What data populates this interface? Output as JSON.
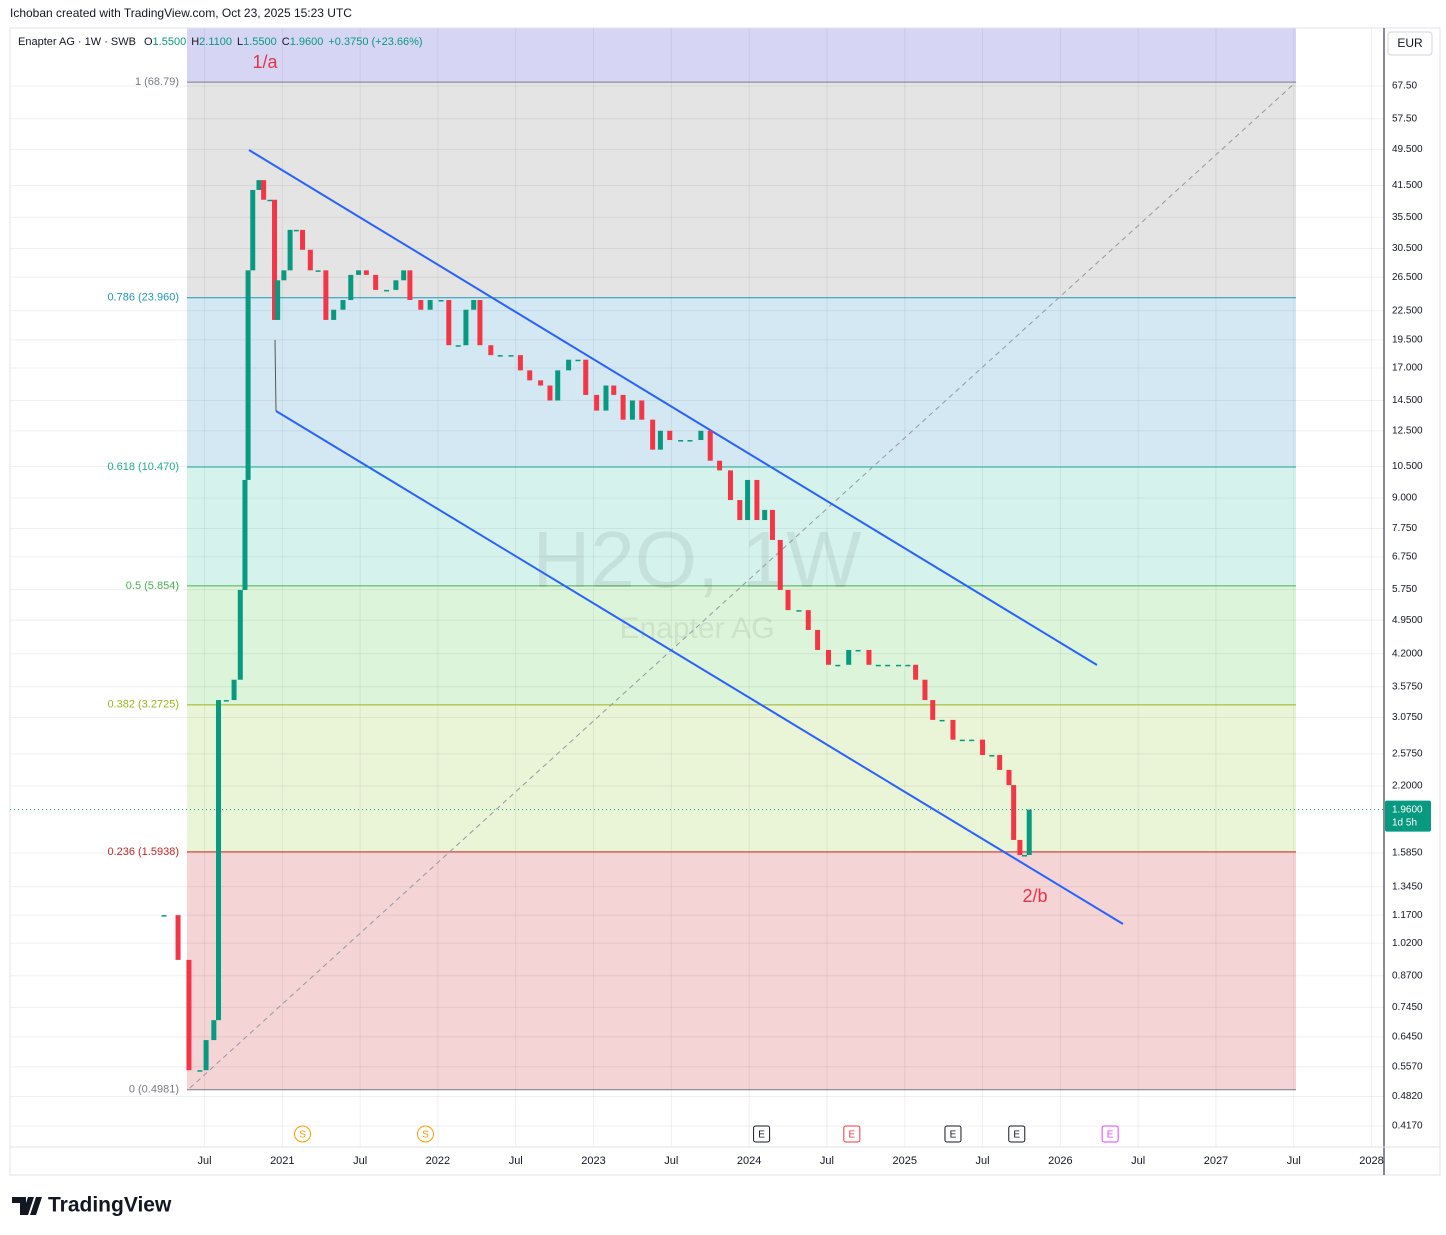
{
  "header": {
    "attribution": "Ichoban created with TradingView.com, Oct 23, 2025 15:23 UTC",
    "symbol": "Enapter AG · 1W · SWB",
    "ohlc": [
      {
        "key": "O",
        "value": "1.5500"
      },
      {
        "key": "H",
        "value": "2.1100"
      },
      {
        "key": "L",
        "value": "1.5500"
      },
      {
        "key": "C",
        "value": "1.9600"
      }
    ],
    "change": "+0.3750 (+23.66%)"
  },
  "currency": "EUR",
  "watermark": {
    "title": "H2O, 1W",
    "subtitle": "Enapter AG"
  },
  "chart_data": {
    "type": "candlestick",
    "log_scale": true,
    "grid": true,
    "color_up": "#089981",
    "color_down": "#f23645",
    "x": [
      2020.24,
      2020.33,
      2020.4,
      2020.47,
      2020.51,
      2020.56,
      2020.59,
      2020.64,
      2020.69,
      2020.73,
      2020.76,
      2020.78,
      2020.81,
      2020.85,
      2020.88,
      2020.92,
      2020.95,
      2020.97,
      2021.01,
      2021.05,
      2021.09,
      2021.13,
      2021.18,
      2021.23,
      2021.28,
      2021.33,
      2021.39,
      2021.44,
      2021.49,
      2021.54,
      2021.6,
      2021.67,
      2021.73,
      2021.78,
      2021.82,
      2021.89,
      2021.95,
      2022.02,
      2022.07,
      2022.13,
      2022.18,
      2022.23,
      2022.27,
      2022.34,
      2022.4,
      2022.47,
      2022.53,
      2022.59,
      2022.66,
      2022.72,
      2022.77,
      2022.84,
      2022.9,
      2022.95,
      2023.02,
      2023.08,
      2023.13,
      2023.19,
      2023.25,
      2023.31,
      2023.38,
      2023.43,
      2023.49,
      2023.56,
      2023.62,
      2023.69,
      2023.75,
      2023.81,
      2023.88,
      2023.94,
      2023.99,
      2024.05,
      2024.1,
      2024.15,
      2024.2,
      2024.25,
      2024.32,
      2024.38,
      2024.44,
      2024.51,
      2024.57,
      2024.64,
      2024.7,
      2024.77,
      2024.83,
      2024.89,
      2024.96,
      2025.02,
      2025.07,
      2025.13,
      2025.18,
      2025.24,
      2025.31,
      2025.37,
      2025.43,
      2025.5,
      2025.56,
      2025.61,
      2025.67,
      2025.7,
      2025.74,
      2025.77,
      2025.8
    ],
    "values": [
      1.17,
      0.94,
      0.548,
      0.548,
      0.635,
      0.7,
      3.35,
      3.35,
      3.7,
      5.74,
      9.83,
      27.4,
      40.6,
      42.6,
      38.7,
      38.7,
      21.5,
      26.1,
      27.4,
      33.4,
      33.4,
      30.3,
      27.4,
      27.4,
      21.5,
      22.6,
      23.7,
      26.8,
      27.4,
      26.8,
      24.9,
      24.9,
      26.1,
      27.4,
      23.7,
      22.6,
      23.7,
      23.7,
      19.0,
      19.0,
      22.6,
      23.7,
      19.0,
      18.1,
      18.1,
      18.1,
      16.8,
      16.0,
      15.6,
      14.5,
      16.8,
      17.7,
      17.7,
      14.9,
      13.8,
      15.6,
      14.9,
      13.2,
      14.5,
      13.2,
      11.4,
      12.5,
      11.95,
      11.95,
      11.95,
      12.5,
      10.8,
      10.3,
      8.91,
      8.08,
      9.83,
      8.08,
      8.49,
      7.33,
      5.74,
      5.2,
      5.2,
      4.72,
      4.28,
      3.98,
      3.98,
      4.28,
      4.28,
      3.98,
      3.98,
      3.98,
      3.98,
      3.98,
      3.7,
      3.35,
      3.04,
      3.04,
      2.76,
      2.76,
      2.76,
      2.56,
      2.56,
      2.38,
      2.21,
      1.69,
      1.57,
      1.57,
      1.96
    ],
    "xlim": [
      2019.25,
      2028.08
    ],
    "ylim": [
      0.3764,
      89.65
    ],
    "xticks": [
      {
        "value": 2020.5,
        "label": "Jul"
      },
      2021,
      {
        "value": 2021.5,
        "label": "Jul"
      },
      2022,
      {
        "value": 2022.5,
        "label": "Jul"
      },
      2023,
      {
        "value": 2023.5,
        "label": "Jul"
      },
      2024,
      {
        "value": 2024.5,
        "label": "Jul"
      },
      2025,
      {
        "value": 2025.5,
        "label": "Jul"
      },
      2026,
      {
        "value": 2026.5,
        "label": "Jul"
      },
      2027,
      {
        "value": 2027.5,
        "label": "Jul"
      },
      2028
    ],
    "yticks": [
      {
        "value": 67.5,
        "label": "67.50"
      },
      {
        "value": 57.5,
        "label": "57.50"
      },
      {
        "value": 49.5,
        "label": "49.500"
      },
      {
        "value": 41.5,
        "label": "41.500"
      },
      {
        "value": 35.5,
        "label": "35.500"
      },
      {
        "value": 30.5,
        "label": "30.500"
      },
      {
        "value": 26.5,
        "label": "26.500"
      },
      {
        "value": 22.5,
        "label": "22.500"
      },
      {
        "value": 19.5,
        "label": "19.500"
      },
      {
        "value": 17,
        "label": "17.000"
      },
      {
        "value": 14.5,
        "label": "14.500"
      },
      {
        "value": 12.5,
        "label": "12.500"
      },
      {
        "value": 10.5,
        "label": "10.500"
      },
      {
        "value": 9,
        "label": "9.000"
      },
      {
        "value": 7.75,
        "label": "7.750"
      },
      {
        "value": 6.75,
        "label": "6.750"
      },
      {
        "value": 5.75,
        "label": "5.750"
      },
      {
        "value": 4.95,
        "label": "4.9500"
      },
      {
        "value": 4.2,
        "label": "4.2000"
      },
      {
        "value": 3.575,
        "label": "3.5750"
      },
      {
        "value": 3.075,
        "label": "3.0750"
      },
      {
        "value": 2.575,
        "label": "2.5750"
      },
      {
        "value": 2.2,
        "label": "2.2000"
      },
      {
        "value": 1.585,
        "label": "1.5850"
      },
      {
        "value": 1.345,
        "label": "1.3450"
      },
      {
        "value": 1.17,
        "label": "1.1700"
      },
      {
        "value": 1.02,
        "label": "1.0200"
      },
      {
        "value": 0.87,
        "label": "0.8700"
      },
      {
        "value": 0.745,
        "label": "0.7450"
      },
      {
        "value": 0.645,
        "label": "0.6450"
      },
      {
        "value": 0.557,
        "label": "0.5570"
      },
      {
        "value": 0.482,
        "label": "0.4820"
      },
      {
        "value": 0.417,
        "label": "0.4170"
      }
    ],
    "fib_top_fill": "#d6d6f4",
    "fib_levels": [
      {
        "label": "1 (68.79)",
        "value": 68.79,
        "color": "#787b86",
        "fill": "#e4e4e4"
      },
      {
        "label": "0.786 (23.960)",
        "value": 23.96,
        "color": "#2196b3",
        "fill": "#d3e8f3"
      },
      {
        "label": "0.618 (10.470)",
        "value": 10.47,
        "color": "#22ab94",
        "fill": "#d5f3ec"
      },
      {
        "label": "0.5 (5.854)",
        "value": 5.854,
        "color": "#4caf50",
        "fill": "#dcf4d9"
      },
      {
        "label": "0.382 (3.2725)",
        "value": 3.2725,
        "color": "#9ab51d",
        "fill": "#eaf4d6"
      },
      {
        "label": "0.236 (1.5938)",
        "value": 1.5938,
        "color": "#c62828",
        "fill": "#f4d4d4"
      },
      {
        "label": "0 (0.4981)",
        "value": 0.4981,
        "color": "#787b86",
        "fill": "none"
      }
    ],
    "last_price": {
      "value": 1.96,
      "label": "1.9600",
      "countdown": "1d 5h",
      "color": "#089981"
    },
    "annotations": [
      {
        "text": "1/a"
      },
      {
        "text": "2/b"
      }
    ],
    "events": [
      {
        "letter": "S",
        "x": 2021.13,
        "color": "#ff9800"
      },
      {
        "letter": "S",
        "x": 2021.92,
        "color": "#ff9800"
      },
      {
        "letter": "E",
        "x": 2024.08,
        "color": "#131722"
      },
      {
        "letter": "E",
        "x": 2024.66,
        "color": "#f23645"
      },
      {
        "letter": "E",
        "x": 2025.31,
        "color": "#131722"
      },
      {
        "letter": "E",
        "x": 2025.72,
        "color": "#131722"
      },
      {
        "letter": "E",
        "x": 2026.32,
        "color": "#e040fb"
      }
    ]
  },
  "footer": {
    "logo": "TradingView"
  }
}
